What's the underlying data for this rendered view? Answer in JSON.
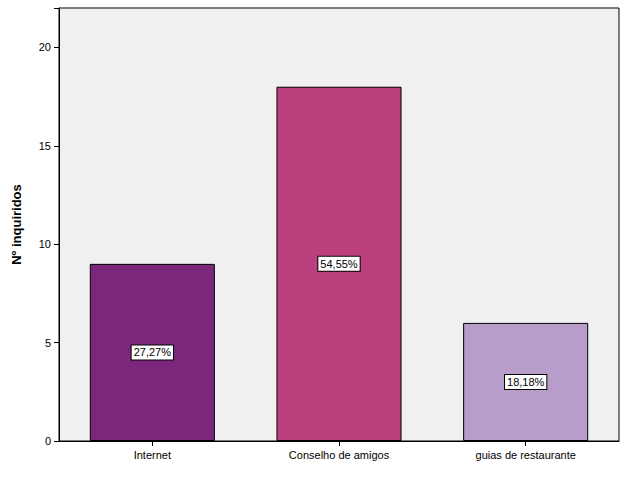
{
  "chart_data": {
    "type": "bar",
    "y_label": "Nº inquiridos",
    "categories": [
      "Internet",
      "Conselho de amigos",
      "guias de restaurante"
    ],
    "values": [
      9,
      18,
      6
    ],
    "percentage_labels": [
      "27,27%",
      "54,55%",
      "18,18%"
    ],
    "colors": [
      "#7b287c",
      "#bc3f7d",
      "#b89cc9"
    ],
    "ylim": [
      0,
      22
    ],
    "yticks": [
      0,
      5,
      10,
      15,
      20
    ],
    "grid": false
  }
}
